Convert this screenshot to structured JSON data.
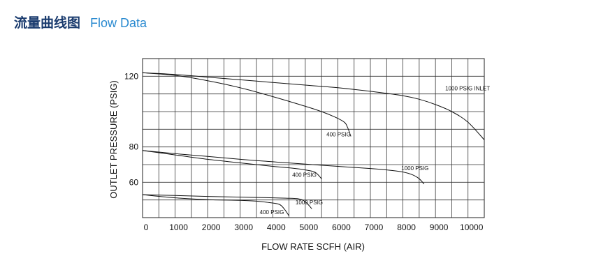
{
  "header": {
    "title_cn": "流量曲线图",
    "title_en": "Flow Data"
  },
  "chart_data": {
    "type": "line",
    "title": "",
    "xlabel": "FLOW  RATE SCFH (AIR)",
    "ylabel": "OUTLET  PRESSURE (PSIG)",
    "xlim": [
      0,
      10500
    ],
    "ylim": [
      40,
      130
    ],
    "x_ticks": [
      "0",
      "1000",
      "2000",
      "3000",
      "4000",
      "5000",
      "6000",
      "7000",
      "8000",
      "9000",
      "10000"
    ],
    "y_ticks": [
      "120",
      "80",
      "60"
    ],
    "grid": true,
    "series": [
      {
        "name": "1000 PSIG INLET",
        "x": [
          0,
          1000,
          2000,
          3000,
          4000,
          5000,
          6000,
          7000,
          8000,
          8500,
          9000,
          9500,
          10000,
          10500
        ],
        "y": [
          122,
          121,
          119.5,
          118,
          116.5,
          115,
          113.5,
          111.5,
          109,
          107,
          104,
          100,
          94,
          84
        ]
      },
      {
        "name": "400 PSIG",
        "x": [
          0,
          1000,
          2000,
          3000,
          4000,
          5000,
          5500,
          5900,
          6200,
          6300,
          6400
        ],
        "y": [
          122,
          120.5,
          117.5,
          113.5,
          108.5,
          103,
          100,
          97,
          94,
          91,
          86
        ]
      },
      {
        "name": "1000 PSIG",
        "x": [
          0,
          1000,
          2000,
          3000,
          4000,
          5000,
          6000,
          7000,
          7500,
          8000,
          8300,
          8500,
          8650
        ],
        "y": [
          78,
          76.2,
          74.6,
          73,
          71.6,
          70.3,
          69,
          67.8,
          67,
          65.8,
          64.2,
          62,
          59
        ]
      },
      {
        "name": "400 PSIG",
        "x": [
          0,
          1000,
          2000,
          3000,
          4000,
          4700,
          5000,
          5300,
          5500
        ],
        "y": [
          78,
          75.5,
          73,
          71,
          69,
          67.8,
          67,
          65.7,
          62
        ]
      },
      {
        "name": "1000 PSIG",
        "x": [
          0,
          1000,
          2000,
          3000,
          4000,
          4400,
          4800,
          5000,
          5200
        ],
        "y": [
          53,
          52.5,
          52,
          51.6,
          51.2,
          51,
          50.6,
          49,
          45
        ]
      },
      {
        "name": "400 PSIG",
        "x": [
          0,
          1000,
          2000,
          3000,
          3500,
          3900,
          4200,
          4350,
          4500
        ],
        "y": [
          53,
          51.2,
          50.2,
          49.8,
          49.3,
          48.5,
          47.5,
          45,
          41
        ]
      }
    ],
    "labels": [
      {
        "text": "1000 PSIG INLET",
        "x": 9300,
        "y": 112
      },
      {
        "text": "400 PSIG",
        "x": 5650,
        "y": 86
      },
      {
        "text": "1000 PSIG",
        "x": 7950,
        "y": 66.8
      },
      {
        "text": "400 PSIG",
        "x": 4600,
        "y": 63
      },
      {
        "text": "1000 PSIG",
        "x": 4700,
        "y": 47.5
      },
      {
        "text": "400 PSIG",
        "x": 3600,
        "y": 42
      }
    ]
  }
}
